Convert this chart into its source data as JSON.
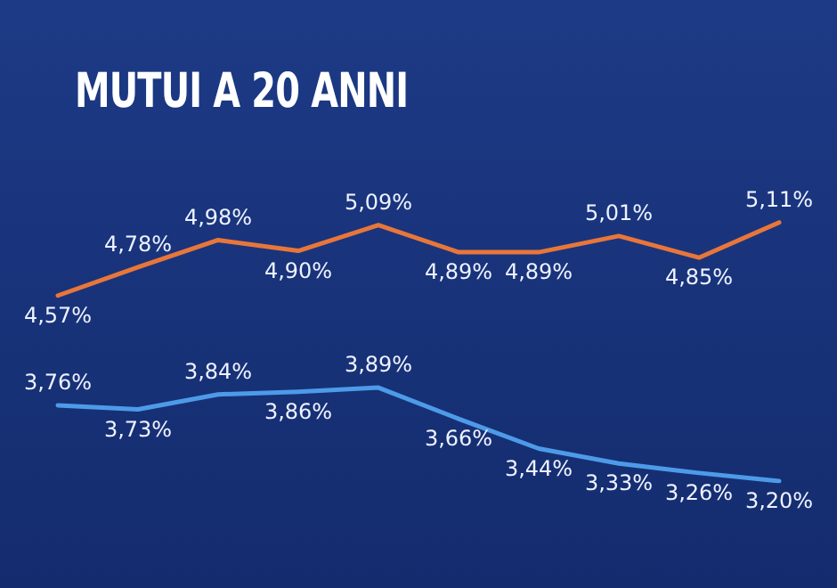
{
  "chart_data": {
    "type": "line",
    "title": "MUTUI A 20 ANNI",
    "categories": [
      null,
      null,
      null,
      null,
      null,
      null,
      null,
      null,
      null,
      null
    ],
    "series": [
      {
        "color": "#e8763a",
        "values": [
          4.57,
          4.78,
          4.98,
          4.9,
          5.09,
          4.89,
          4.89,
          5.01,
          4.85,
          5.11
        ],
        "value_labels": [
          "4,57%",
          "4,78%",
          "4,98%",
          "4,90%",
          "5,09%",
          "4,89%",
          "4,89%",
          "5,01%",
          "4,85%",
          "5,11%"
        ]
      },
      {
        "color": "#4d9be8",
        "values": [
          3.76,
          3.73,
          3.84,
          3.86,
          3.89,
          3.66,
          3.44,
          3.33,
          3.26,
          3.2
        ],
        "value_labels": [
          "3,76%",
          "3,73%",
          "3,84%",
          "3,86%",
          "3,89%",
          "3,66%",
          "3,44%",
          "3,33%",
          "3,26%",
          "3,20%"
        ]
      }
    ],
    "tick_labels": false,
    "legend": false,
    "marker": "none",
    "line_style": "solid"
  }
}
